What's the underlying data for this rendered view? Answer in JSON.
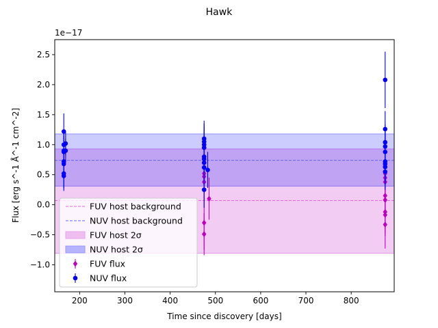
{
  "chart_data": {
    "type": "scatter",
    "title": "Hawk",
    "xlabel": "Time since discovery [days]",
    "ylabel": "Flux [erg s^-1 Å^-1 cm^-2]",
    "offset_text": "1e−17",
    "xlim": [
      145,
      895
    ],
    "ylim": [
      -1.45,
      2.75
    ],
    "xticks": [
      200,
      300,
      400,
      500,
      600,
      700,
      800
    ],
    "xtick_labels": [
      "200",
      "300",
      "400",
      "500",
      "600",
      "700",
      "800"
    ],
    "yticks": [
      -1.0,
      -0.5,
      0.0,
      0.5,
      1.0,
      1.5,
      2.0,
      2.5
    ],
    "ytick_labels": [
      "−1.0",
      "−0.5",
      "0.0",
      "0.5",
      "1.0",
      "1.5",
      "2.0",
      "2.5"
    ],
    "grid": false,
    "legend_position": "lower-left",
    "colors": {
      "fuv": "#bf00bf",
      "nuv": "#0000ff",
      "fuv_bg_line": "#e066e0",
      "nuv_bg_line": "#6666ee",
      "fuv_band": "#e8a5e8",
      "nuv_band": "#9999ff"
    },
    "bands": [
      {
        "name": "FUV host 2σ",
        "ymin": -0.81,
        "ymax": 0.93,
        "color": "#bf00bf",
        "opacity": 0.2
      },
      {
        "name": "NUV host 2σ",
        "ymin": 0.31,
        "ymax": 1.18,
        "color": "#0000ff",
        "opacity": 0.2
      }
    ],
    "background_lines": [
      {
        "name": "FUV host background",
        "y": 0.07,
        "color": "#e066e0"
      },
      {
        "name": "NUV host background",
        "y": 0.74,
        "color": "#6666ee"
      }
    ],
    "series": [
      {
        "name": "FUV flux",
        "marker": "diamond",
        "color": "#bf00bf",
        "points": [
          {
            "x": 475,
            "y": 0.52,
            "err": 0.3
          },
          {
            "x": 475,
            "y": 0.47,
            "err": 0.3
          },
          {
            "x": 475,
            "y": 0.38,
            "err": 0.3
          },
          {
            "x": 475,
            "y": -0.3,
            "err": 0.45
          },
          {
            "x": 475,
            "y": -0.49,
            "err": 0.35
          },
          {
            "x": 486,
            "y": 0.1,
            "err": 0.35
          },
          {
            "x": 875,
            "y": 0.52,
            "err": 0.3
          },
          {
            "x": 875,
            "y": 0.45,
            "err": 0.3
          },
          {
            "x": 875,
            "y": 0.38,
            "err": 0.3
          },
          {
            "x": 875,
            "y": 0.15,
            "err": 0.3
          },
          {
            "x": 875,
            "y": 0.08,
            "err": 0.3
          },
          {
            "x": 875,
            "y": -0.12,
            "err": 0.35
          },
          {
            "x": 875,
            "y": -0.17,
            "err": 0.35
          },
          {
            "x": 875,
            "y": -0.33,
            "err": 0.4
          }
        ]
      },
      {
        "name": "NUV flux",
        "marker": "circle",
        "color": "#0000ff",
        "points": [
          {
            "x": 165,
            "y": 1.22,
            "err": 0.3
          },
          {
            "x": 165,
            "y": 1.0,
            "err": 0.25
          },
          {
            "x": 165,
            "y": 0.9,
            "err": 0.25
          },
          {
            "x": 165,
            "y": 0.88,
            "err": 0.25
          },
          {
            "x": 165,
            "y": 0.72,
            "err": 0.25
          },
          {
            "x": 165,
            "y": 0.68,
            "err": 0.25
          },
          {
            "x": 165,
            "y": 0.52,
            "err": 0.25
          },
          {
            "x": 165,
            "y": 0.48,
            "err": 0.25
          },
          {
            "x": 169,
            "y": 1.02,
            "err": 0.2
          },
          {
            "x": 169,
            "y": 0.9,
            "err": 0.2
          },
          {
            "x": 475,
            "y": 1.1,
            "err": 0.3
          },
          {
            "x": 475,
            "y": 1.05,
            "err": 0.3
          },
          {
            "x": 475,
            "y": 1.0,
            "err": 0.3
          },
          {
            "x": 475,
            "y": 0.95,
            "err": 0.3
          },
          {
            "x": 475,
            "y": 0.8,
            "err": 0.3
          },
          {
            "x": 475,
            "y": 0.76,
            "err": 0.3
          },
          {
            "x": 475,
            "y": 0.7,
            "err": 0.3
          },
          {
            "x": 475,
            "y": 0.62,
            "err": 0.3
          },
          {
            "x": 475,
            "y": 0.25,
            "err": 0.3
          },
          {
            "x": 483,
            "y": 0.58,
            "err": 0.3
          },
          {
            "x": 875,
            "y": 2.08,
            "err": 0.47
          },
          {
            "x": 875,
            "y": 1.26,
            "err": 0.3
          },
          {
            "x": 875,
            "y": 1.04,
            "err": 0.3
          },
          {
            "x": 875,
            "y": 0.97,
            "err": 0.3
          },
          {
            "x": 875,
            "y": 0.88,
            "err": 0.3
          },
          {
            "x": 875,
            "y": 0.72,
            "err": 0.3
          },
          {
            "x": 875,
            "y": 0.68,
            "err": 0.3
          },
          {
            "x": 875,
            "y": 0.63,
            "err": 0.3
          },
          {
            "x": 875,
            "y": 0.55,
            "err": 0.3
          }
        ]
      }
    ],
    "legend": [
      {
        "label": "FUV host background",
        "kind": "dashed-line",
        "color": "#e066e0"
      },
      {
        "label": "NUV host background",
        "kind": "dashed-line",
        "color": "#6666ee"
      },
      {
        "label": "FUV host 2σ",
        "kind": "patch",
        "color": "#e8a5e8"
      },
      {
        "label": "NUV host 2σ",
        "kind": "patch",
        "color": "#9999ff"
      },
      {
        "label": "FUV flux",
        "kind": "diamond",
        "color": "#bf00bf"
      },
      {
        "label": "NUV flux",
        "kind": "circle",
        "color": "#0000ff"
      }
    ]
  }
}
